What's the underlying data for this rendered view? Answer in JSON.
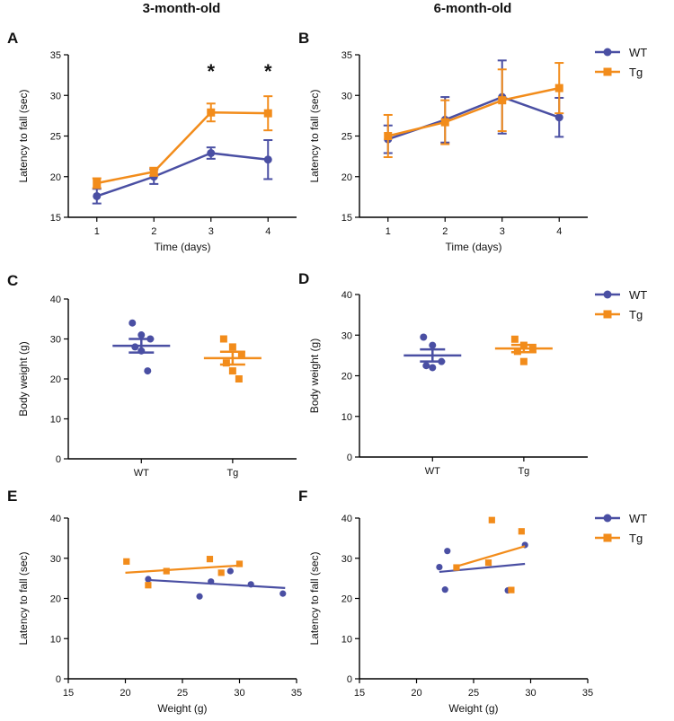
{
  "column_titles": [
    "3-month-old",
    "6-month-old"
  ],
  "colors": {
    "WT": "#4a4fa3",
    "Tg": "#f28c1b"
  },
  "chart_data": [
    {
      "panel": "A",
      "type": "line",
      "xlabel": "Time (days)",
      "ylabel": "Latency to fall (sec)",
      "x": [
        1,
        2,
        3,
        4
      ],
      "xticks": [
        1,
        2,
        3,
        4
      ],
      "xlim": [
        0.5,
        4.5
      ],
      "ylim": [
        15,
        35
      ],
      "yticks": [
        15,
        20,
        25,
        30,
        35
      ],
      "series": [
        {
          "name": "WT",
          "marker": "circle",
          "values": [
            17.6,
            20.0,
            22.9,
            22.1
          ],
          "errors": [
            0.9,
            0.9,
            0.7,
            2.4
          ]
        },
        {
          "name": "Tg",
          "marker": "square",
          "values": [
            19.2,
            20.6,
            27.9,
            27.8
          ],
          "errors": [
            0.6,
            0.5,
            1.1,
            2.1
          ]
        }
      ],
      "significance": [
        {
          "x": 3,
          "label": "*"
        },
        {
          "x": 4,
          "label": "*"
        }
      ]
    },
    {
      "panel": "B",
      "type": "line",
      "xlabel": "Time (days)",
      "ylabel": "Latency to fall (sec)",
      "x": [
        1,
        2,
        3,
        4
      ],
      "xticks": [
        1,
        2,
        3,
        4
      ],
      "xlim": [
        0.5,
        4.5
      ],
      "ylim": [
        15,
        35
      ],
      "yticks": [
        15,
        20,
        25,
        30,
        35
      ],
      "legend": [
        "WT",
        "Tg"
      ],
      "series": [
        {
          "name": "WT",
          "marker": "circle",
          "values": [
            24.6,
            27.0,
            29.8,
            27.3
          ],
          "errors": [
            1.7,
            2.8,
            4.5,
            2.4
          ]
        },
        {
          "name": "Tg",
          "marker": "square",
          "values": [
            25.0,
            26.7,
            29.4,
            30.9
          ],
          "errors": [
            2.6,
            2.7,
            3.8,
            3.1
          ]
        }
      ]
    },
    {
      "panel": "C",
      "type": "scatter",
      "xlabel": "",
      "ylabel": "Body weight (g)",
      "categories": [
        "WT",
        "Tg"
      ],
      "ylim": [
        0,
        40
      ],
      "yticks": [
        0,
        10,
        20,
        30,
        40
      ],
      "series": [
        {
          "name": "WT",
          "marker": "circle",
          "points": [
            34,
            31,
            30,
            28,
            27,
            22
          ],
          "mean": 28.3,
          "sem": 1.7
        },
        {
          "name": "Tg",
          "marker": "square",
          "points": [
            30,
            28,
            26,
            24,
            22,
            20
          ],
          "mean": 25.2,
          "sem": 1.6
        }
      ]
    },
    {
      "panel": "D",
      "type": "scatter",
      "xlabel": "",
      "ylabel": "Body weight (g)",
      "categories": [
        "WT",
        "Tg"
      ],
      "ylim": [
        0,
        40
      ],
      "yticks": [
        0,
        10,
        20,
        30,
        40
      ],
      "legend": [
        "WT",
        "Tg"
      ],
      "series": [
        {
          "name": "WT",
          "marker": "circle",
          "points": [
            29.5,
            27.5,
            23.5,
            22.5,
            22.0
          ],
          "mean": 25.0,
          "sem": 1.5
        },
        {
          "name": "Tg",
          "marker": "square",
          "points": [
            29.0,
            27.5,
            26.5,
            26.0,
            23.5
          ],
          "mean": 26.7,
          "sem": 0.9
        }
      ]
    },
    {
      "panel": "E",
      "type": "scatter",
      "xlabel": "Weight (g)",
      "ylabel": "Latency to fall (sec)",
      "xlim": [
        15,
        35
      ],
      "xticks": [
        15,
        20,
        25,
        30,
        35
      ],
      "ylim": [
        0,
        40
      ],
      "yticks": [
        0,
        10,
        20,
        30,
        40
      ],
      "series": [
        {
          "name": "WT",
          "marker": "circle",
          "x": [
            22.0,
            26.5,
            27.5,
            29.2,
            31.0,
            33.8
          ],
          "y": [
            24.8,
            20.5,
            24.2,
            26.8,
            23.5,
            21.2
          ],
          "fit": [
            [
              22,
              24.6
            ],
            [
              34,
              22.6
            ]
          ]
        },
        {
          "name": "Tg",
          "marker": "square",
          "x": [
            20.1,
            22.0,
            23.6,
            27.4,
            28.4,
            30.0
          ],
          "y": [
            29.2,
            23.3,
            26.8,
            29.8,
            26.4,
            28.6
          ],
          "fit": [
            [
              20,
              26.4
            ],
            [
              30,
              28.2
            ]
          ]
        }
      ]
    },
    {
      "panel": "F",
      "type": "scatter",
      "xlabel": "Weight (g)",
      "ylabel": "Latency to fall (sec)",
      "xlim": [
        15,
        35
      ],
      "xticks": [
        15,
        20,
        25,
        30,
        35
      ],
      "ylim": [
        0,
        40
      ],
      "yticks": [
        0,
        10,
        20,
        30,
        40
      ],
      "legend": [
        "WT",
        "Tg"
      ],
      "series": [
        {
          "name": "WT",
          "marker": "circle",
          "x": [
            22.0,
            22.5,
            22.7,
            28.0,
            29.5
          ],
          "y": [
            27.8,
            22.2,
            31.8,
            22.0,
            33.3
          ],
          "fit": [
            [
              22,
              26.6
            ],
            [
              29.5,
              28.6
            ]
          ]
        },
        {
          "name": "Tg",
          "marker": "square",
          "x": [
            23.5,
            26.3,
            26.6,
            28.3,
            29.2
          ],
          "y": [
            27.7,
            28.9,
            39.5,
            22.1,
            36.7
          ],
          "fit": [
            [
              23.3,
              27.8
            ],
            [
              29.5,
              33.0
            ]
          ]
        }
      ]
    }
  ]
}
